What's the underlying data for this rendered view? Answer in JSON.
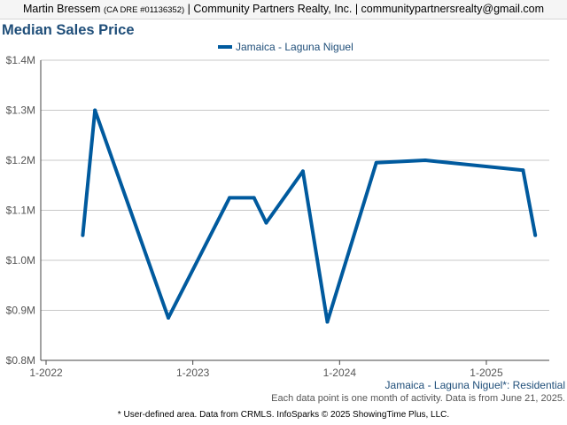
{
  "header": {
    "agent_name": "Martin Bressem",
    "dre": "(CA DRE #01136352)",
    "brokerage": "| Community Partners Realty, Inc. | communitypartnersrealty@gmail.com"
  },
  "footer": {
    "series_label": "Jamaica - Laguna Niguel*: Residential",
    "note": "Each data point is one month of activity. Data is from June 21, 2025.",
    "source": "* User-defined area. Data from CRMLS. InfoSparks © 2025 ShowingTime Plus, LLC."
  },
  "colors": {
    "series": "#005a9e",
    "title": "#1f4e79",
    "grid": "#c8c8c8"
  },
  "chart_data": {
    "type": "line",
    "title": "Median Sales Price",
    "legend_position": "top-center",
    "grid": true,
    "x_ticks": [
      {
        "label": "1-2022",
        "month": 0
      },
      {
        "label": "1-2023",
        "month": 12
      },
      {
        "label": "1-2024",
        "month": 24
      },
      {
        "label": "1-2025",
        "month": 36
      }
    ],
    "xlim_months": [
      0,
      41
    ],
    "y_ticks": [
      {
        "label": "$0.8M",
        "value": 0.8
      },
      {
        "label": "$0.9M",
        "value": 0.9
      },
      {
        "label": "$1.0M",
        "value": 1.0
      },
      {
        "label": "$1.1M",
        "value": 1.1
      },
      {
        "label": "$1.2M",
        "value": 1.2
      },
      {
        "label": "$1.3M",
        "value": 1.3
      },
      {
        "label": "$1.4M",
        "value": 1.4
      }
    ],
    "ylim": [
      0.8,
      1.4
    ],
    "series": [
      {
        "name": "Jamaica - Laguna Niguel",
        "points": [
          {
            "month": 3,
            "value": 1.05
          },
          {
            "month": 4,
            "value": 1.3
          },
          {
            "month": 10,
            "value": 0.885
          },
          {
            "month": 15,
            "value": 1.125
          },
          {
            "month": 17,
            "value": 1.125
          },
          {
            "month": 18,
            "value": 1.075
          },
          {
            "month": 21,
            "value": 1.178
          },
          {
            "month": 23,
            "value": 0.877
          },
          {
            "month": 27,
            "value": 1.195
          },
          {
            "month": 31,
            "value": 1.2
          },
          {
            "month": 39,
            "value": 1.18
          },
          {
            "month": 40,
            "value": 1.05
          }
        ]
      }
    ]
  }
}
